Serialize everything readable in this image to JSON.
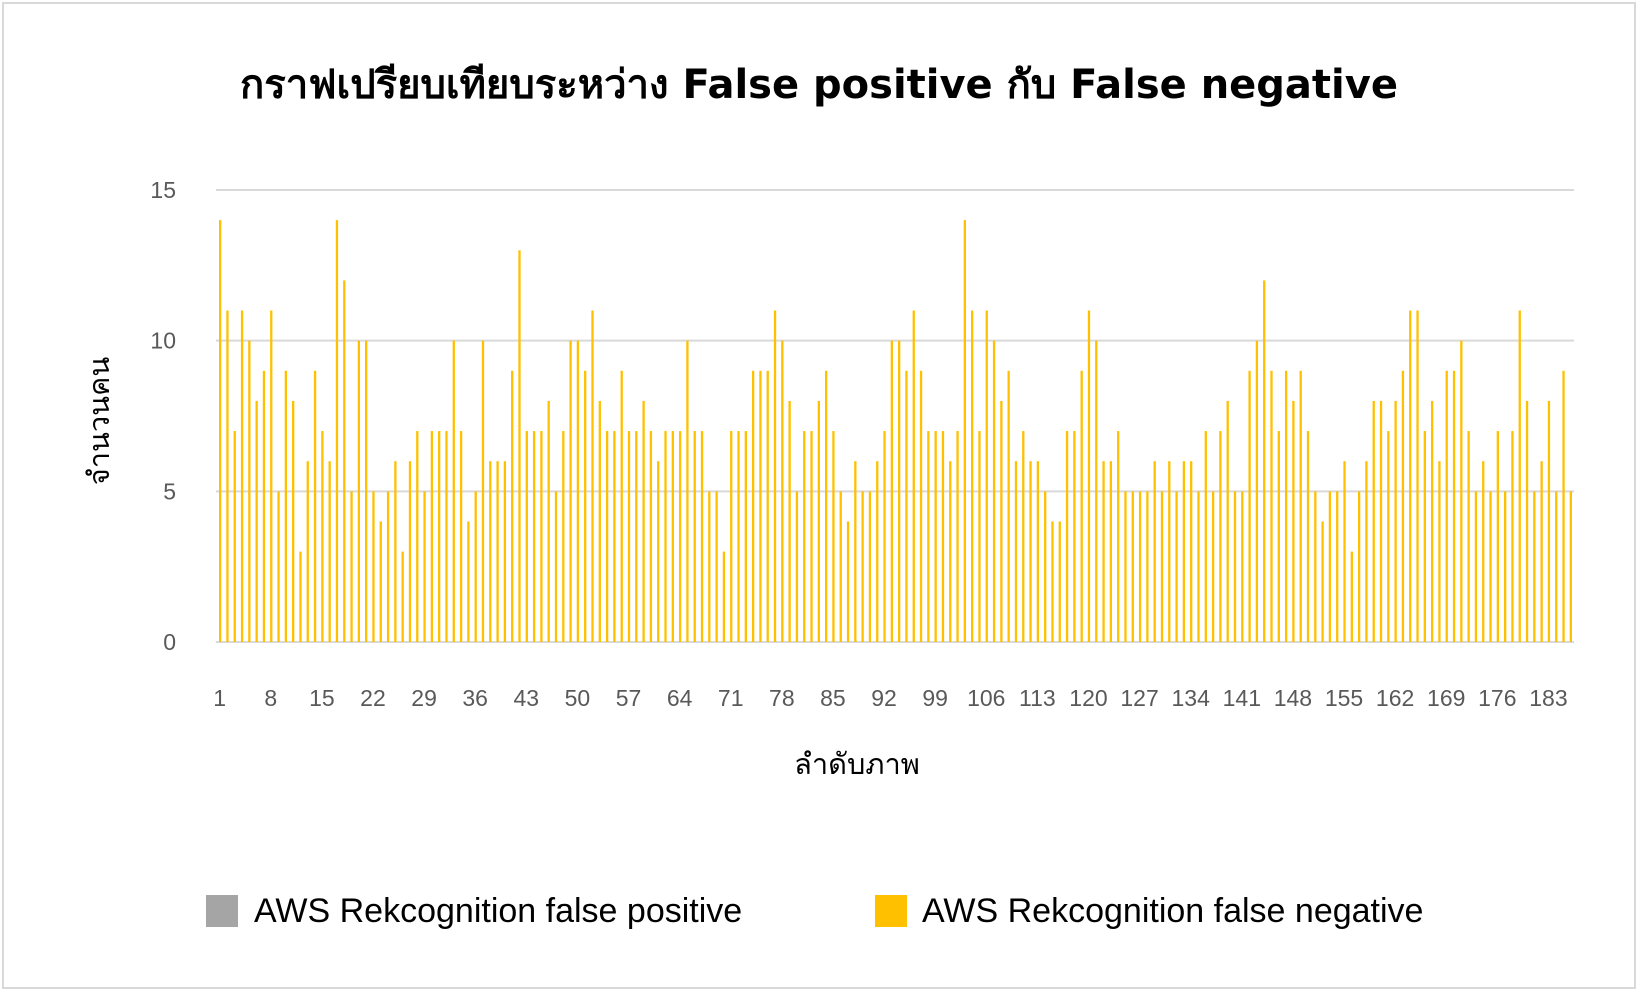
{
  "chart_data": {
    "type": "bar",
    "title": "กราฟเปรียบเทียบระหว่าง False positive กับ False negative",
    "xlabel": "ลำดับภาพ",
    "ylabel": "จำนวนคน",
    "ylim": [
      0,
      15
    ],
    "yticks": [
      0,
      5,
      10,
      15
    ],
    "grid": true,
    "legend_position": "bottom",
    "x_tick_labels": [
      "1",
      "8",
      "15",
      "22",
      "29",
      "36",
      "43",
      "50",
      "57",
      "64",
      "71",
      "78",
      "85",
      "92",
      "99",
      "106",
      "113",
      "120",
      "127",
      "134",
      "141",
      "148",
      "155",
      "162",
      "169",
      "176",
      "183"
    ],
    "series": [
      {
        "name": "AWS Rekcognition false positive",
        "color": "#a5a5a5",
        "values": [
          0,
          0,
          0,
          0,
          0,
          0,
          0,
          0,
          0,
          0,
          0,
          0,
          0,
          0,
          0,
          0,
          0,
          0,
          0,
          0,
          0,
          0,
          0,
          0,
          0,
          0,
          0,
          0,
          0,
          0,
          0,
          0,
          0,
          0,
          0,
          0,
          0,
          0,
          0,
          0,
          0,
          0,
          0,
          0,
          0,
          0,
          0,
          0,
          0,
          0,
          0,
          0,
          0,
          0,
          0,
          0,
          0,
          0,
          0,
          0,
          0,
          0,
          0,
          0,
          0,
          0,
          0,
          0,
          0,
          0,
          0,
          0,
          0,
          0,
          0,
          0,
          0,
          0,
          0,
          0,
          0,
          0,
          0,
          0,
          0,
          0,
          0,
          0,
          0,
          0,
          0,
          0,
          0,
          0,
          0,
          0,
          0,
          0,
          0,
          0,
          0,
          0,
          0,
          0,
          0,
          0,
          0,
          0,
          0,
          0,
          0,
          0,
          0,
          0,
          0,
          0,
          0,
          0,
          0,
          0,
          0,
          0,
          0,
          0,
          0,
          0,
          0,
          0,
          0,
          0,
          0,
          0,
          0,
          0,
          0,
          0,
          0,
          0,
          0,
          0,
          0,
          0,
          0,
          0,
          0,
          0,
          0,
          0,
          0,
          0,
          0,
          0,
          0,
          0,
          0,
          0,
          0,
          0,
          0,
          0,
          0,
          0,
          0,
          0,
          0,
          0,
          0,
          0,
          0,
          0,
          0,
          0,
          0,
          0,
          0,
          0,
          0,
          0,
          0,
          0,
          0,
          0,
          0,
          0,
          0
        ]
      },
      {
        "name": "AWS Rekcognition false negative",
        "color": "#ffc000",
        "values": [
          14,
          11,
          7,
          11,
          10,
          8,
          9,
          11,
          5,
          9,
          8,
          3,
          6,
          9,
          7,
          6,
          14,
          12,
          5,
          10,
          10,
          5,
          4,
          5,
          6,
          3,
          6,
          7,
          5,
          7,
          7,
          7,
          10,
          7,
          4,
          5,
          10,
          6,
          6,
          6,
          9,
          13,
          7,
          7,
          7,
          8,
          5,
          7,
          10,
          10,
          9,
          11,
          8,
          7,
          7,
          9,
          7,
          7,
          8,
          7,
          6,
          7,
          7,
          7,
          10,
          7,
          7,
          5,
          5,
          3,
          7,
          7,
          7,
          9,
          9,
          9,
          11,
          10,
          8,
          5,
          7,
          7,
          8,
          9,
          7,
          5,
          4,
          6,
          5,
          5,
          6,
          7,
          10,
          10,
          9,
          11,
          9,
          7,
          7,
          7,
          6,
          7,
          14,
          11,
          7,
          11,
          10,
          8,
          9,
          6,
          7,
          6,
          6,
          5,
          4,
          4,
          7,
          7,
          9,
          11,
          10,
          6,
          6,
          7,
          5,
          5,
          5,
          5,
          6,
          5,
          6,
          5,
          6,
          6,
          5,
          7,
          5,
          7,
          8,
          5,
          5,
          9,
          10,
          12,
          9,
          7,
          9,
          8,
          9,
          7,
          5,
          4,
          5,
          5,
          6,
          3,
          5,
          6,
          8,
          8,
          7,
          8,
          9,
          11,
          11,
          7,
          8,
          6,
          9,
          9,
          10,
          7,
          5,
          6,
          5,
          7,
          5,
          7,
          11,
          8,
          5,
          6,
          8,
          5,
          9,
          5
        ]
      }
    ]
  }
}
